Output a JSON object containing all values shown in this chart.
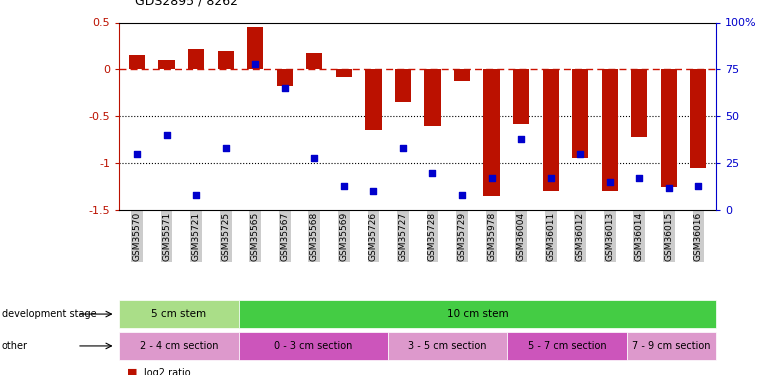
{
  "title": "GDS2895 / 8262",
  "samples": [
    "GSM35570",
    "GSM35571",
    "GSM35721",
    "GSM35725",
    "GSM35565",
    "GSM35567",
    "GSM35568",
    "GSM35569",
    "GSM35726",
    "GSM35727",
    "GSM35728",
    "GSM35729",
    "GSM35978",
    "GSM36004",
    "GSM36011",
    "GSM36012",
    "GSM36013",
    "GSM36014",
    "GSM36015",
    "GSM36016"
  ],
  "log2_ratio": [
    0.15,
    0.1,
    0.22,
    0.2,
    0.45,
    -0.18,
    0.18,
    -0.08,
    -0.65,
    -0.35,
    -0.6,
    -0.12,
    -1.35,
    -0.58,
    -1.3,
    -0.95,
    -1.3,
    -0.72,
    -1.25,
    -1.05
  ],
  "percentile": [
    30,
    40,
    8,
    33,
    78,
    65,
    28,
    13,
    10,
    33,
    20,
    8,
    17,
    38,
    17,
    30,
    15,
    17,
    12,
    13
  ],
  "ylim_left": [
    -1.5,
    0.5
  ],
  "ylim_right": [
    0,
    100
  ],
  "bar_color": "#bb1100",
  "dot_color": "#0000cc",
  "hline_color": "#cc1100",
  "dev_stage_groups": [
    {
      "label": "5 cm stem",
      "start": 0,
      "end": 4,
      "color": "#aade88"
    },
    {
      "label": "10 cm stem",
      "start": 4,
      "end": 20,
      "color": "#44cc44"
    }
  ],
  "other_groups": [
    {
      "label": "2 - 4 cm section",
      "start": 0,
      "end": 4,
      "color": "#dd99cc"
    },
    {
      "label": "0 - 3 cm section",
      "start": 4,
      "end": 9,
      "color": "#cc55bb"
    },
    {
      "label": "3 - 5 cm section",
      "start": 9,
      "end": 13,
      "color": "#dd99cc"
    },
    {
      "label": "5 - 7 cm section",
      "start": 13,
      "end": 17,
      "color": "#cc55bb"
    },
    {
      "label": "7 - 9 cm section",
      "start": 17,
      "end": 20,
      "color": "#dd99cc"
    }
  ],
  "bg_color": "#ffffff",
  "tick_bg_color": "#cccccc"
}
